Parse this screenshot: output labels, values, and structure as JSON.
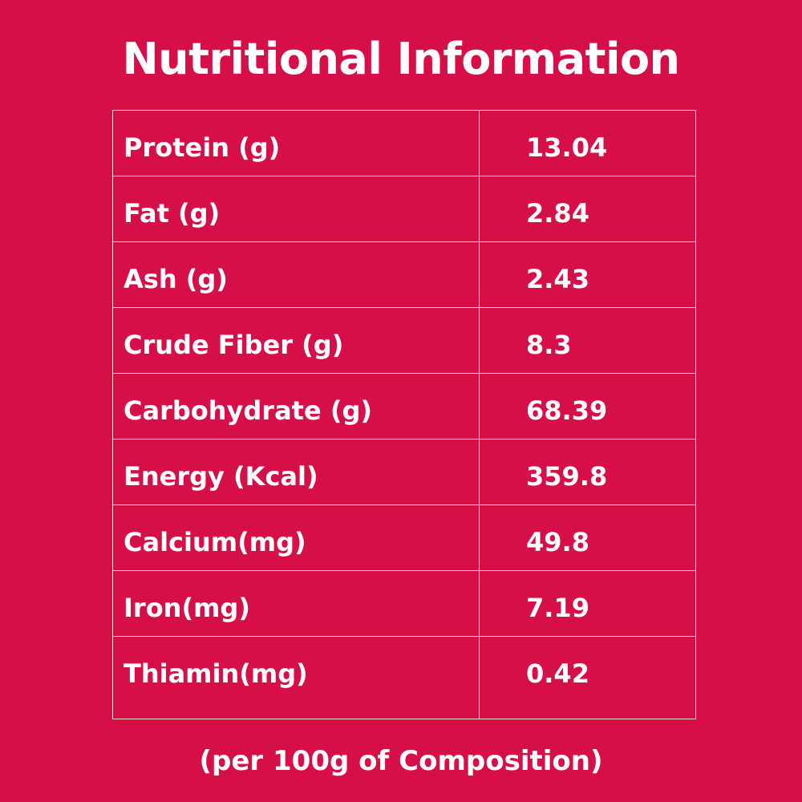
{
  "colors": {
    "background": "#d70f49",
    "text": "#ffffff",
    "grid_line": "#ffdec8"
  },
  "title": "Nutritional Information",
  "rows": [
    {
      "label": "Protein (g)",
      "value": "13.04"
    },
    {
      "label": "Fat (g)",
      "value": "2.84"
    },
    {
      "label": "Ash (g)",
      "value": "2.43"
    },
    {
      "label": "Crude Fiber (g)",
      "value": "8.3"
    },
    {
      "label": "Carbohydrate (g)",
      "value": "68.39"
    },
    {
      "label": "Energy (Kcal)",
      "value": "359.8"
    },
    {
      "label": "Calcium(mg)",
      "value": "49.8"
    },
    {
      "label": "Iron(mg)",
      "value": "7.19"
    },
    {
      "label": "Thiamin(mg)",
      "value": "0.42"
    }
  ],
  "footnote": "(per 100g of Composition)"
}
